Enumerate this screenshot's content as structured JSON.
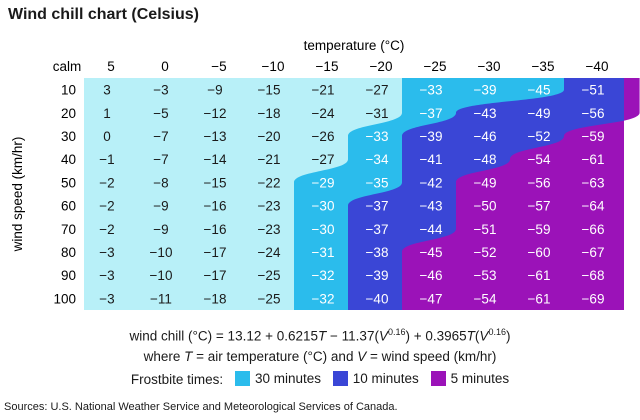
{
  "title": "Wind chill chart (Celsius)",
  "chart_data": {
    "type": "table",
    "xlabel": "temperature (°C)",
    "ylabel": "wind speed (km/hr)",
    "corner_label": "calm",
    "temperatures": [
      "5",
      "0",
      "−5",
      "−10",
      "−15",
      "−20",
      "−25",
      "−30",
      "−35",
      "−40"
    ],
    "wind_speeds": [
      "10",
      "20",
      "30",
      "40",
      "50",
      "60",
      "70",
      "80",
      "90",
      "100"
    ],
    "values": [
      [
        "3",
        "−3",
        "−9",
        "−15",
        "−21",
        "−27",
        "−33",
        "−39",
        "−45",
        "−51"
      ],
      [
        "1",
        "−5",
        "−12",
        "−18",
        "−24",
        "−31",
        "−37",
        "−43",
        "−49",
        "−56"
      ],
      [
        "0",
        "−7",
        "−13",
        "−20",
        "−26",
        "−33",
        "−39",
        "−46",
        "−52",
        "−59"
      ],
      [
        "−1",
        "−7",
        "−14",
        "−21",
        "−27",
        "−34",
        "−41",
        "−48",
        "−54",
        "−61"
      ],
      [
        "−2",
        "−8",
        "−15",
        "−22",
        "−29",
        "−35",
        "−42",
        "−49",
        "−56",
        "−63"
      ],
      [
        "−2",
        "−9",
        "−16",
        "−23",
        "−30",
        "−37",
        "−43",
        "−50",
        "−57",
        "−64"
      ],
      [
        "−2",
        "−9",
        "−16",
        "−23",
        "−30",
        "−37",
        "−44",
        "−51",
        "−59",
        "−66"
      ],
      [
        "−3",
        "−10",
        "−17",
        "−24",
        "−31",
        "−38",
        "−45",
        "−52",
        "−60",
        "−67"
      ],
      [
        "−3",
        "−10",
        "−17",
        "−25",
        "−32",
        "−39",
        "−46",
        "−53",
        "−61",
        "−68"
      ],
      [
        "−3",
        "−11",
        "−18",
        "−25",
        "−32",
        "−40",
        "−47",
        "−54",
        "−61",
        "−69"
      ]
    ],
    "zones": [
      {
        "label": "30 minutes",
        "color": "#2bbcec",
        "first_col": [
          6,
          6,
          5,
          5,
          4,
          4,
          4,
          4,
          4,
          4
        ]
      },
      {
        "label": "10 minutes",
        "color": "#3a46d6",
        "first_col": [
          9,
          7,
          6,
          6,
          6,
          5,
          5,
          5,
          5,
          5
        ]
      },
      {
        "label": "5 minutes",
        "color": "#9b12b8",
        "first_col": [
          99,
          99,
          9,
          8,
          7,
          7,
          7,
          6,
          6,
          6
        ]
      }
    ],
    "base_color": "#b8f0f8"
  },
  "formula": {
    "line1_prefix": "wind chill (°C) = 13.12 + 0.6215",
    "T1": "T",
    "line1_mid1": " − 11.37(",
    "V1": "V",
    "exp1": "0.16",
    "line1_mid2": ") + 0.3965",
    "T2": "T",
    "line1_mid3": "(",
    "V2": "V",
    "exp2": "0.16",
    "line1_end": ")",
    "line2_a": "where ",
    "line2_T": "T",
    "line2_b": " = air temperature (°C) and ",
    "line2_V": "V",
    "line2_c": " = wind speed (km/hr)"
  },
  "legend": {
    "label": "Frostbite times:",
    "items": [
      {
        "label": "30 minutes",
        "color": "#2bbcec"
      },
      {
        "label": "10 minutes",
        "color": "#3a46d6"
      },
      {
        "label": "5 minutes",
        "color": "#9b12b8"
      }
    ]
  },
  "source": "Sources: U.S. National Weather Service and Meteorological Services of Canada."
}
